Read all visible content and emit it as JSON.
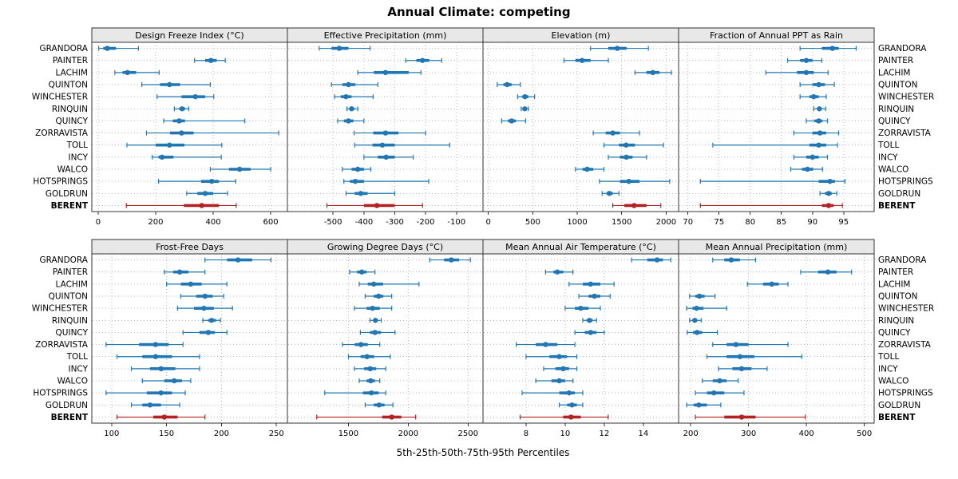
{
  "title": "Annual Climate: competing",
  "footer": "5th-25th-50th-75th-95th Percentiles",
  "percentile_labels": [
    "5th",
    "25th",
    "50th",
    "75th",
    "95th"
  ],
  "highlight_site": "BERENT",
  "sites": [
    "GRANDORA",
    "PAINTER",
    "LACHIM",
    "QUINTON",
    "WINCHESTER",
    "RINQUIN",
    "QUINCY",
    "ZORRAVISTA",
    "TOLL",
    "INCY",
    "WALCO",
    "HOTSPRINGS",
    "GOLDRUN",
    "BERENT"
  ],
  "colors": {
    "series": "#2077b4",
    "highlight": "#b22222",
    "strip_bg": "#e8e8e8",
    "panel_border": "#333333",
    "grid": "#bdbdbd",
    "text": "#000000"
  },
  "chart_data": [
    {
      "type": "scatter",
      "title": "Design Freeze Index (°C)",
      "xlim": [
        -22,
        658
      ],
      "xticks": [
        0,
        200,
        400,
        600
      ],
      "values": [
        [
          2,
          18,
          32,
          62,
          140
        ],
        [
          335,
          372,
          392,
          412,
          442
        ],
        [
          58,
          85,
          102,
          132,
          212
        ],
        [
          152,
          215,
          248,
          285,
          390
        ],
        [
          205,
          290,
          338,
          372,
          402
        ],
        [
          265,
          282,
          292,
          302,
          315
        ],
        [
          228,
          260,
          282,
          302,
          510
        ],
        [
          168,
          250,
          290,
          332,
          628
        ],
        [
          100,
          200,
          248,
          300,
          430
        ],
        [
          188,
          210,
          222,
          262,
          428
        ],
        [
          390,
          455,
          492,
          530,
          600
        ],
        [
          210,
          358,
          395,
          420,
          478
        ],
        [
          308,
          345,
          372,
          400,
          450
        ],
        [
          98,
          298,
          360,
          420,
          480
        ]
      ]
    },
    {
      "type": "scatter",
      "title": "Effective Precipitation (mm)",
      "xlim": [
        -648,
        -14
      ],
      "xticks": [
        -500,
        -400,
        -300,
        -200,
        -100
      ],
      "values": [
        [
          -545,
          -505,
          -480,
          -450,
          -380
        ],
        [
          -265,
          -230,
          -210,
          -188,
          -148
        ],
        [
          -420,
          -368,
          -330,
          -255,
          -215
        ],
        [
          -505,
          -470,
          -450,
          -428,
          -355
        ],
        [
          -495,
          -475,
          -458,
          -440,
          -370
        ],
        [
          -455,
          -447,
          -440,
          -431,
          -420
        ],
        [
          -485,
          -465,
          -450,
          -434,
          -400
        ],
        [
          -432,
          -370,
          -330,
          -288,
          -200
        ],
        [
          -430,
          -372,
          -340,
          -300,
          -122
        ],
        [
          -400,
          -355,
          -328,
          -300,
          -240
        ],
        [
          -470,
          -440,
          -420,
          -400,
          -378
        ],
        [
          -465,
          -445,
          -428,
          -400,
          -190
        ],
        [
          -458,
          -430,
          -410,
          -388,
          -300
        ],
        [
          -520,
          -400,
          -358,
          -300,
          -210
        ]
      ]
    },
    {
      "type": "scatter",
      "title": "Elevation (m)",
      "xlim": [
        -60,
        2140
      ],
      "xticks": [
        0,
        500,
        1000,
        1500,
        2000
      ],
      "values": [
        [
          1150,
          1350,
          1450,
          1555,
          1800
        ],
        [
          850,
          980,
          1055,
          1150,
          1350
        ],
        [
          1650,
          1780,
          1850,
          1925,
          2060
        ],
        [
          100,
          170,
          212,
          262,
          360
        ],
        [
          330,
          382,
          412,
          450,
          520
        ],
        [
          370,
          395,
          410,
          426,
          450
        ],
        [
          150,
          220,
          262,
          310,
          420
        ],
        [
          1180,
          1320,
          1400,
          1480,
          1700
        ],
        [
          1300,
          1470,
          1550,
          1650,
          1970
        ],
        [
          1350,
          1480,
          1552,
          1622,
          1780
        ],
        [
          980,
          1060,
          1112,
          1180,
          1300
        ],
        [
          1250,
          1480,
          1580,
          1700,
          2040
        ],
        [
          1280,
          1330,
          1362,
          1400,
          1470
        ],
        [
          1400,
          1530,
          1640,
          1780,
          1940
        ]
      ]
    },
    {
      "type": "scatter",
      "title": "Fraction of Annual PPT as Rain",
      "xlim": [
        68.5,
        99.9
      ],
      "xticks": [
        70,
        75,
        80,
        85,
        90,
        95
      ],
      "values": [
        [
          88,
          91.5,
          93.2,
          94.2,
          97
        ],
        [
          86,
          88,
          89,
          90,
          91.5
        ],
        [
          82.5,
          87.5,
          89,
          90.2,
          92.5
        ],
        [
          88,
          90,
          91,
          92,
          93.5
        ],
        [
          88,
          89.5,
          90.2,
          91,
          92.2
        ],
        [
          90.2,
          90.8,
          91.1,
          91.5,
          92.1
        ],
        [
          89,
          90.3,
          91,
          91.6,
          92.4
        ],
        [
          87,
          90,
          91.2,
          92.2,
          94.2
        ],
        [
          74,
          89.5,
          91,
          92.2,
          94
        ],
        [
          87,
          89,
          90,
          91,
          92.4
        ],
        [
          86.5,
          88.3,
          89.2,
          90.1,
          91.6
        ],
        [
          72,
          91,
          92.8,
          93.6,
          95.2
        ],
        [
          91.2,
          92,
          92.6,
          93.1,
          93.9
        ],
        [
          72,
          91.5,
          92.6,
          93.4,
          94.8
        ]
      ]
    },
    {
      "type": "scatter",
      "title": "Frost-Free Days",
      "xlim": [
        82,
        260
      ],
      "xticks": [
        100,
        150,
        200,
        250
      ],
      "values": [
        [
          185,
          205,
          215,
          228,
          245
        ],
        [
          148,
          156,
          162,
          170,
          185
        ],
        [
          150,
          163,
          172,
          182,
          205
        ],
        [
          163,
          177,
          185,
          192,
          202
        ],
        [
          160,
          175,
          184,
          193,
          210
        ],
        [
          183,
          188,
          191,
          195,
          199
        ],
        [
          165,
          180,
          188,
          194,
          205
        ],
        [
          95,
          125,
          140,
          152,
          165
        ],
        [
          105,
          128,
          140,
          155,
          180
        ],
        [
          118,
          135,
          145,
          158,
          180
        ],
        [
          128,
          148,
          157,
          164,
          172
        ],
        [
          95,
          132,
          145,
          155,
          167
        ],
        [
          118,
          128,
          135,
          145,
          162
        ],
        [
          105,
          138,
          148,
          160,
          185
        ]
      ]
    },
    {
      "type": "scatter",
      "title": "Growing Degree Days (°C)",
      "xlim": [
        990,
        2625
      ],
      "xticks": [
        1500,
        2000,
        2500
      ],
      "values": [
        [
          2180,
          2300,
          2360,
          2425,
          2520
        ],
        [
          1510,
          1572,
          1612,
          1652,
          1722
        ],
        [
          1590,
          1662,
          1712,
          1790,
          2090
        ],
        [
          1640,
          1712,
          1752,
          1792,
          1862
        ],
        [
          1550,
          1652,
          1702,
          1762,
          1862
        ],
        [
          1680,
          1710,
          1726,
          1746,
          1775
        ],
        [
          1600,
          1680,
          1722,
          1772,
          1890
        ],
        [
          1450,
          1552,
          1605,
          1662,
          1762
        ],
        [
          1500,
          1602,
          1655,
          1715,
          1850
        ],
        [
          1550,
          1632,
          1682,
          1732,
          1812
        ],
        [
          1590,
          1652,
          1686,
          1722,
          1762
        ],
        [
          1302,
          1622,
          1692,
          1752,
          1812
        ],
        [
          1640,
          1712,
          1756,
          1802,
          1872
        ],
        [
          1235,
          1782,
          1862,
          1942,
          2062
        ]
      ]
    },
    {
      "type": "scatter",
      "title": "Mean Annual Air Temperature (°C)",
      "xlim": [
        5.8,
        15.8
      ],
      "xticks": [
        8,
        10,
        12,
        14
      ],
      "values": [
        [
          13.4,
          14.2,
          14.7,
          15.0,
          15.4
        ],
        [
          9.0,
          9.4,
          9.6,
          9.9,
          10.4
        ],
        [
          10.2,
          10.9,
          11.3,
          11.8,
          12.5
        ],
        [
          10.7,
          11.2,
          11.5,
          11.8,
          12.3
        ],
        [
          10.0,
          10.5,
          10.8,
          11.2,
          11.8
        ],
        [
          10.9,
          11.1,
          11.25,
          11.4,
          11.6
        ],
        [
          10.5,
          11.0,
          11.3,
          11.6,
          12.0
        ],
        [
          7.5,
          8.5,
          9.0,
          9.6,
          10.5
        ],
        [
          8.0,
          9.2,
          9.7,
          10.1,
          10.6
        ],
        [
          8.9,
          9.5,
          9.9,
          10.2,
          10.6
        ],
        [
          8.5,
          9.3,
          9.7,
          10.0,
          10.4
        ],
        [
          7.8,
          9.7,
          10.2,
          10.5,
          10.9
        ],
        [
          9.7,
          10.1,
          10.35,
          10.6,
          10.9
        ],
        [
          7.7,
          9.9,
          10.3,
          10.8,
          12.2
        ]
      ]
    },
    {
      "type": "scatter",
      "title": "Mean Annual Precipitation (mm)",
      "xlim": [
        179,
        517
      ],
      "xticks": [
        200,
        300,
        400,
        500
      ],
      "values": [
        [
          238,
          258,
          270,
          285,
          312
        ],
        [
          390,
          420,
          437,
          452,
          478
        ],
        [
          298,
          325,
          340,
          352,
          368
        ],
        [
          198,
          208,
          215,
          224,
          242
        ],
        [
          193,
          203,
          210,
          222,
          262
        ],
        [
          198,
          203,
          207,
          211,
          218
        ],
        [
          194,
          204,
          211,
          220,
          246
        ],
        [
          238,
          262,
          278,
          300,
          368
        ],
        [
          228,
          262,
          285,
          310,
          392
        ],
        [
          248,
          272,
          288,
          305,
          332
        ],
        [
          220,
          238,
          250,
          262,
          282
        ],
        [
          208,
          228,
          240,
          258,
          292
        ],
        [
          193,
          205,
          214,
          228,
          252
        ],
        [
          208,
          258,
          288,
          312,
          398
        ]
      ]
    }
  ]
}
